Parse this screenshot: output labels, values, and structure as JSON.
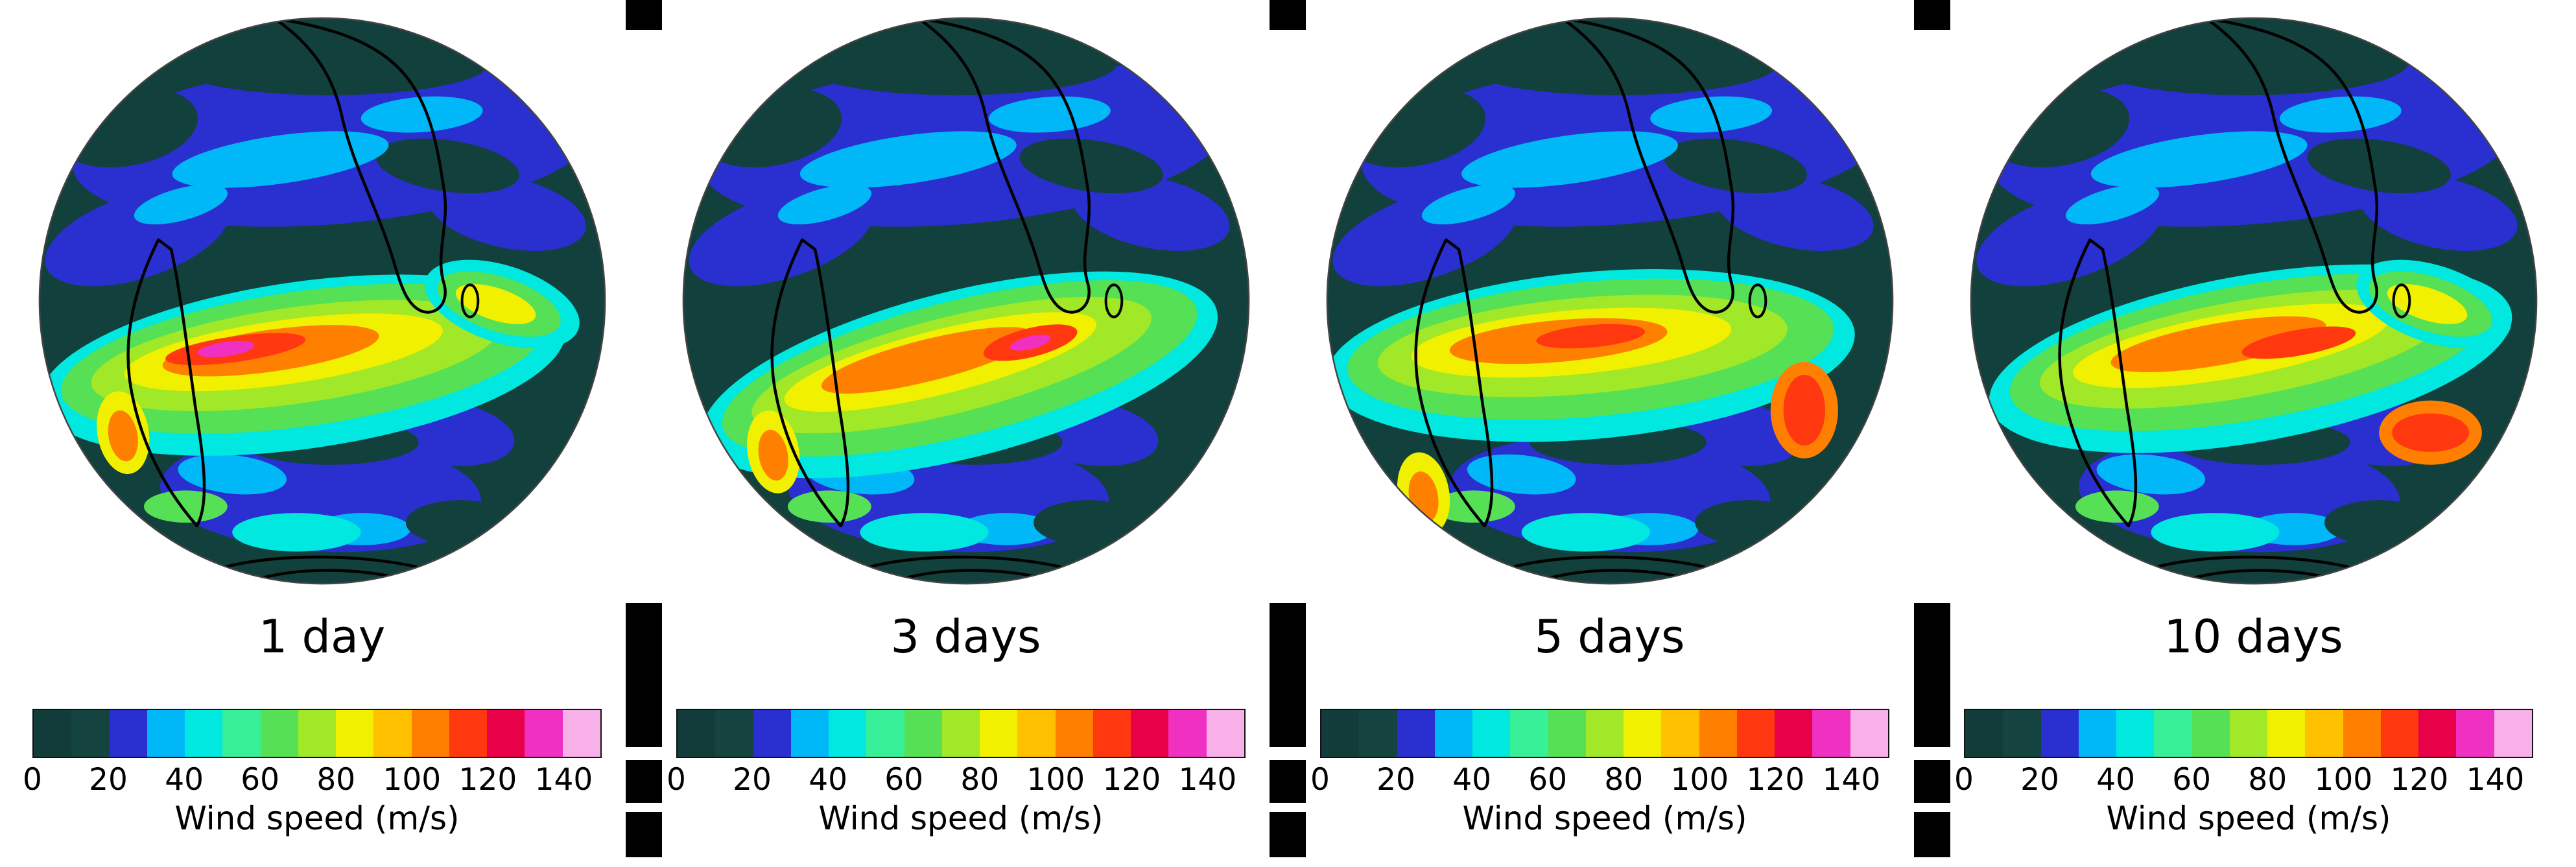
{
  "figure": {
    "panels": [
      {
        "title": "1 day"
      },
      {
        "title": "3 days"
      },
      {
        "title": "5 days"
      },
      {
        "title": "10 days"
      }
    ],
    "colorbar": {
      "label": "Wind speed (m/s)",
      "ticks": [
        0,
        20,
        40,
        60,
        80,
        100,
        120,
        140
      ],
      "min": 0,
      "max": 150,
      "colors": [
        "#123c3a",
        "#15433f",
        "#2a2fd0",
        "#00b8f8",
        "#00e8e0",
        "#38f098",
        "#55e055",
        "#a0e828",
        "#f0f000",
        "#ffc000",
        "#ff8000",
        "#ff3810",
        "#e80048",
        "#f030c0",
        "#f8b0e8"
      ]
    }
  },
  "chart_data": {
    "type": "heatmap",
    "title": "",
    "subtitle": "",
    "panels": [
      "1 day",
      "3 days",
      "5 days",
      "10 days"
    ],
    "variable": "Wind speed (m/s)",
    "projection": "orthographic globe (South Atlantic / southern Africa view, coastlines outlined)",
    "colorbar_ticks": [
      0,
      20,
      40,
      60,
      80,
      100,
      120,
      140
    ],
    "colorbar_range": [
      0,
      150
    ],
    "colorbar_label": "Wind speed (m/s)",
    "colorbar_colors": [
      "#123c3a",
      "#15433f",
      "#2a2fd0",
      "#00b8f8",
      "#00e8e0",
      "#38f098",
      "#55e055",
      "#a0e828",
      "#f0f000",
      "#ffc000",
      "#ff8000",
      "#ff3810",
      "#e80048",
      "#f030c0",
      "#f8b0e8"
    ],
    "legend_position": "below each panel",
    "notes": "Four forecast lead-time maps of wind speed; strongest jet (orange/red/magenta cores >100 m/s) lies in a wavy mid-latitude band; dark teal regions are calm (<20 m/s)."
  }
}
